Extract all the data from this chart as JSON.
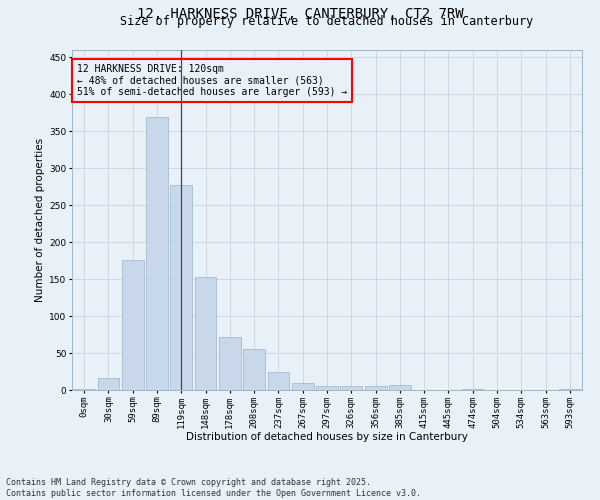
{
  "title_line1": "12, HARKNESS DRIVE, CANTERBURY, CT2 7RW",
  "title_line2": "Size of property relative to detached houses in Canterbury",
  "xlabel": "Distribution of detached houses by size in Canterbury",
  "ylabel": "Number of detached properties",
  "categories": [
    "0sqm",
    "30sqm",
    "59sqm",
    "89sqm",
    "119sqm",
    "148sqm",
    "178sqm",
    "208sqm",
    "237sqm",
    "267sqm",
    "297sqm",
    "326sqm",
    "356sqm",
    "385sqm",
    "415sqm",
    "445sqm",
    "474sqm",
    "504sqm",
    "534sqm",
    "563sqm",
    "593sqm"
  ],
  "values": [
    2,
    16,
    176,
    370,
    277,
    153,
    72,
    55,
    24,
    10,
    6,
    6,
    6,
    7,
    0,
    0,
    1,
    0,
    0,
    0,
    1
  ],
  "bar_color": "#c8d8ea",
  "bar_edge_color": "#9ab4cc",
  "annotation_text": "12 HARKNESS DRIVE: 120sqm\n← 48% of detached houses are smaller (563)\n51% of semi-detached houses are larger (593) →",
  "ylim": [
    0,
    460
  ],
  "yticks": [
    0,
    50,
    100,
    150,
    200,
    250,
    300,
    350,
    400,
    450
  ],
  "grid_color": "#ccd8e4",
  "bg_color": "#e8f0f8",
  "footer_line1": "Contains HM Land Registry data © Crown copyright and database right 2025.",
  "footer_line2": "Contains public sector information licensed under the Open Government Licence v3.0.",
  "title_fontsize": 10,
  "subtitle_fontsize": 8.5,
  "axis_label_fontsize": 7.5,
  "tick_fontsize": 6.5,
  "annotation_fontsize": 7,
  "footer_fontsize": 6
}
